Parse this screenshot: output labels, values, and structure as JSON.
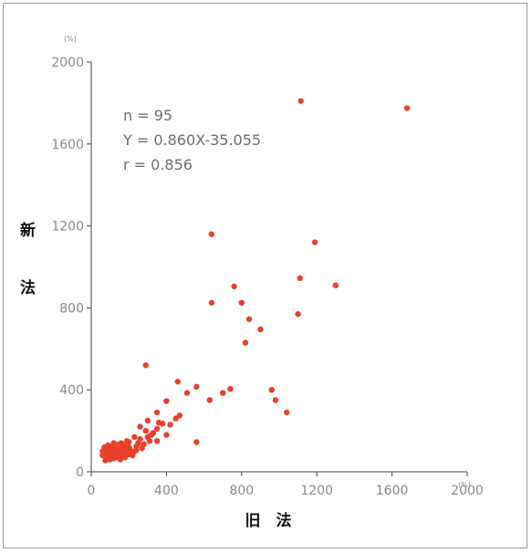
{
  "chart_data": {
    "type": "scatter",
    "title": "",
    "xlabel": "旧　法",
    "ylabel_chars": [
      "新",
      "法"
    ],
    "x_unit": "(%)",
    "y_unit": "(%)",
    "xlim": [
      0,
      2000
    ],
    "ylim": [
      0,
      2000
    ],
    "x_ticks": [
      "0",
      "400",
      "800",
      "1200",
      "1600",
      "2000"
    ],
    "y_ticks": [
      "0",
      "400",
      "800",
      "1200",
      "1600",
      "2000"
    ],
    "annotations": [
      "n = 95",
      "Y = 0.860X-35.055",
      "r = 0.856"
    ],
    "grid": false,
    "legend": "none",
    "point_color": "#e8402c",
    "points": [
      [
        1115,
        1810
      ],
      [
        1680,
        1775
      ],
      [
        640,
        1160
      ],
      [
        1190,
        1120
      ],
      [
        1110,
        945
      ],
      [
        1300,
        910
      ],
      [
        760,
        905
      ],
      [
        640,
        825
      ],
      [
        800,
        825
      ],
      [
        840,
        745
      ],
      [
        1100,
        770
      ],
      [
        900,
        695
      ],
      [
        820,
        630
      ],
      [
        290,
        520
      ],
      [
        460,
        440
      ],
      [
        560,
        415
      ],
      [
        510,
        385
      ],
      [
        700,
        385
      ],
      [
        740,
        405
      ],
      [
        960,
        400
      ],
      [
        630,
        350
      ],
      [
        980,
        350
      ],
      [
        1040,
        290
      ],
      [
        400,
        345
      ],
      [
        350,
        290
      ],
      [
        450,
        260
      ],
      [
        380,
        235
      ],
      [
        300,
        250
      ],
      [
        350,
        210
      ],
      [
        260,
        220
      ],
      [
        420,
        230
      ],
      [
        470,
        275
      ],
      [
        560,
        145
      ],
      [
        330,
        190
      ],
      [
        400,
        180
      ],
      [
        300,
        170
      ],
      [
        260,
        160
      ],
      [
        310,
        150
      ],
      [
        230,
        170
      ],
      [
        280,
        135
      ],
      [
        200,
        145
      ],
      [
        350,
        150
      ],
      [
        240,
        125
      ],
      [
        190,
        110
      ],
      [
        150,
        135
      ],
      [
        160,
        105
      ],
      [
        120,
        140
      ],
      [
        140,
        120
      ],
      [
        110,
        110
      ],
      [
        90,
        130
      ],
      [
        130,
        90
      ],
      [
        100,
        90
      ],
      [
        80,
        100
      ],
      [
        70,
        120
      ],
      [
        90,
        70
      ],
      [
        110,
        75
      ],
      [
        150,
        80
      ],
      [
        180,
        90
      ],
      [
        120,
        65
      ],
      [
        80,
        75
      ],
      [
        100,
        60
      ],
      [
        60,
        80
      ],
      [
        170,
        120
      ],
      [
        210,
        95
      ],
      [
        230,
        100
      ],
      [
        190,
        150
      ],
      [
        270,
        115
      ],
      [
        140,
        70
      ],
      [
        60,
        100
      ],
      [
        75,
        55
      ],
      [
        95,
        105
      ],
      [
        125,
        115
      ],
      [
        160,
        140
      ],
      [
        200,
        120
      ],
      [
        250,
        140
      ],
      [
        220,
        80
      ],
      [
        180,
        70
      ],
      [
        135,
        100
      ],
      [
        115,
        125
      ],
      [
        85,
        115
      ],
      [
        105,
        95
      ],
      [
        145,
        95
      ],
      [
        165,
        85
      ],
      [
        205,
        110
      ],
      [
        185,
        130
      ],
      [
        155,
        60
      ],
      [
        70,
        85
      ],
      [
        90,
        85
      ],
      [
        125,
        80
      ],
      [
        240,
        105
      ],
      [
        320,
        180
      ],
      [
        290,
        200
      ],
      [
        360,
        240
      ],
      [
        200,
        85
      ]
    ]
  }
}
